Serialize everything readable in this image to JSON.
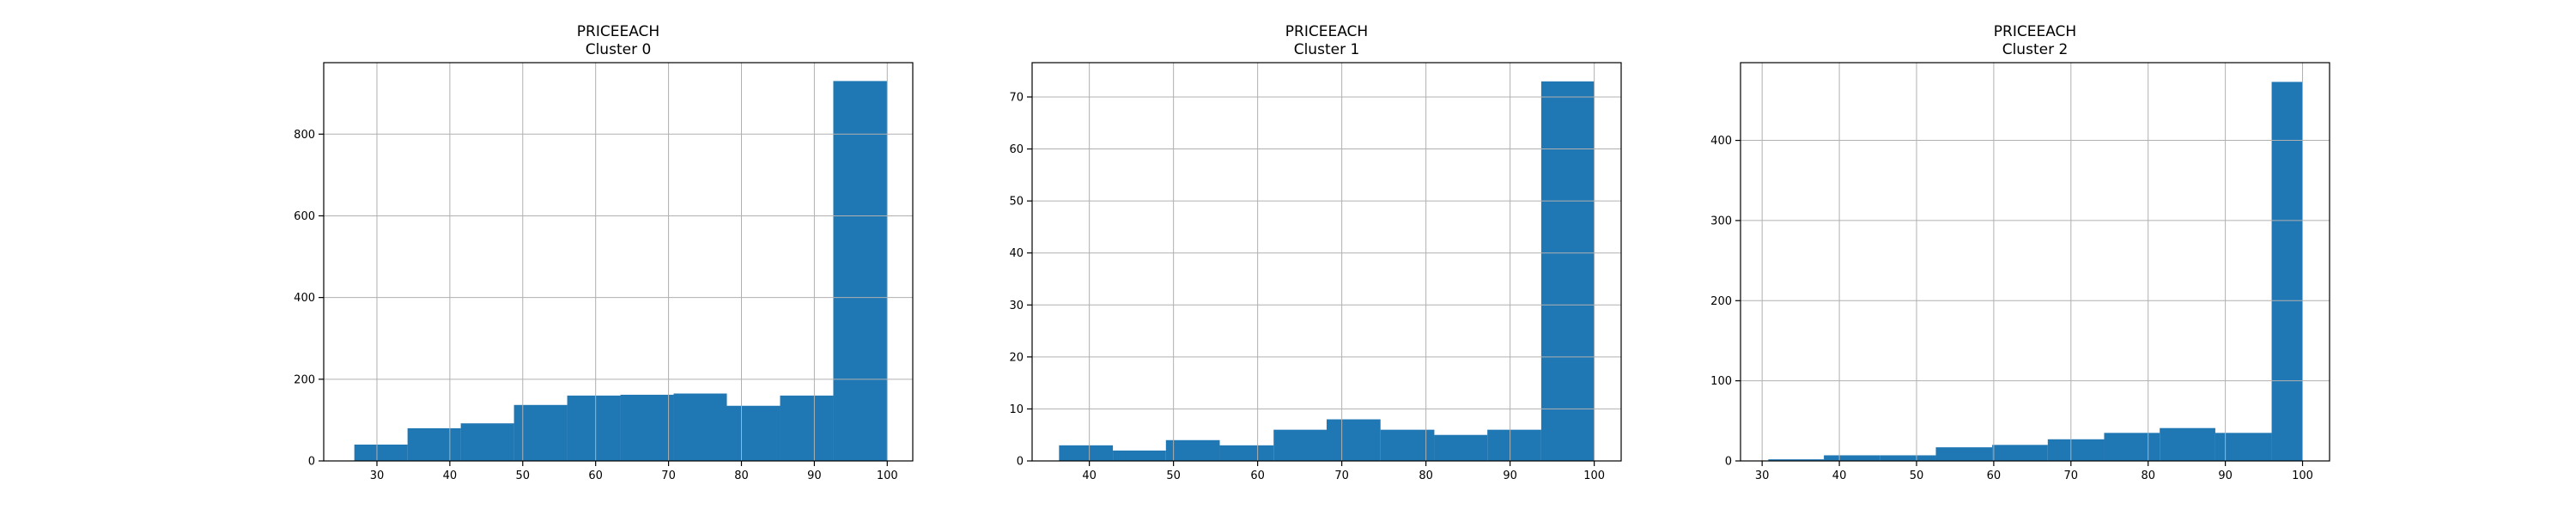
{
  "chart_data": [
    {
      "type": "bar",
      "title_line1": "PRICEEACH",
      "title_line2": "Cluster 0",
      "xlabel": "",
      "ylabel": "",
      "grid": true,
      "bar_color": "#1f77b4",
      "xlim": [
        22.7,
        103.5
      ],
      "ylim": [
        0,
        975
      ],
      "xticks": [
        30,
        40,
        50,
        60,
        70,
        80,
        90,
        100
      ],
      "yticks": [
        0,
        200,
        400,
        600,
        800
      ],
      "bin_edges": [
        26.9,
        34.2,
        41.5,
        48.8,
        56.1,
        63.4,
        70.7,
        78.0,
        85.3,
        92.6,
        100
      ],
      "values": [
        40,
        80,
        92,
        137,
        160,
        162,
        165,
        135,
        160,
        930
      ]
    },
    {
      "type": "bar",
      "title_line1": "PRICEEACH",
      "title_line2": "Cluster 1",
      "xlabel": "",
      "ylabel": "",
      "grid": true,
      "bar_color": "#1f77b4",
      "xlim": [
        33.2,
        103.2
      ],
      "ylim": [
        0,
        76.6
      ],
      "xticks": [
        40,
        50,
        60,
        70,
        80,
        90,
        100
      ],
      "yticks": [
        0,
        10,
        20,
        30,
        40,
        50,
        60,
        70
      ],
      "bin_edges": [
        36.4,
        42.8,
        49.1,
        55.5,
        61.9,
        68.2,
        74.6,
        81.0,
        87.3,
        93.7,
        100
      ],
      "values": [
        3,
        2,
        4,
        3,
        6,
        8,
        6,
        5,
        6,
        73
      ]
    },
    {
      "type": "bar",
      "title_line1": "PRICEEACH",
      "title_line2": "Cluster 2",
      "xlabel": "",
      "ylabel": "",
      "grid": true,
      "bar_color": "#1f77b4",
      "xlim": [
        27.2,
        103.5
      ],
      "ylim": [
        0,
        497
      ],
      "xticks": [
        30,
        40,
        50,
        60,
        70,
        80,
        90,
        100
      ],
      "yticks": [
        0,
        100,
        200,
        300,
        400
      ],
      "bin_edges": [
        30.8,
        38.0,
        45.3,
        52.5,
        59.8,
        67.0,
        74.3,
        81.5,
        88.7,
        96.0,
        100
      ],
      "values": [
        2,
        7,
        7,
        17,
        20,
        27,
        35,
        41,
        35,
        473
      ]
    }
  ]
}
